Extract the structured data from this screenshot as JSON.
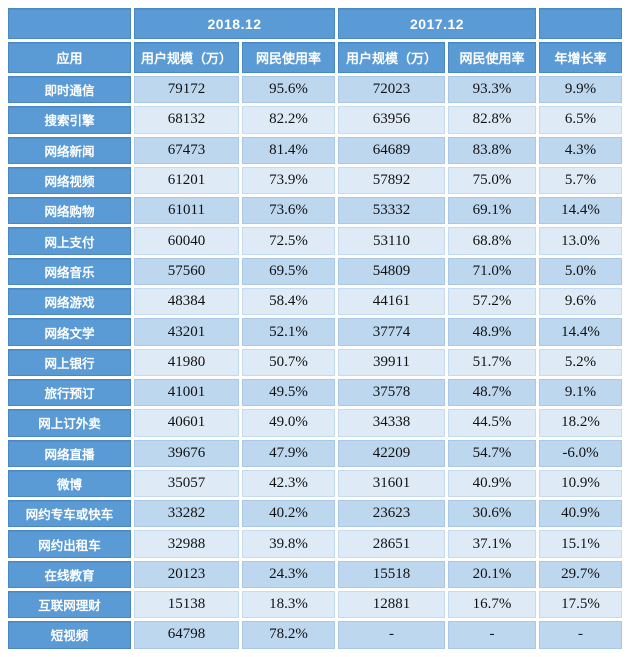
{
  "colors": {
    "header_blue": "#5B9BD5",
    "header_border": "#4B87C4",
    "header_text": "#FFFFFF",
    "row_dark": "#BDD7EE",
    "row_light": "#DEEBF7",
    "text": "#111111",
    "background": "#FFFFFF"
  },
  "chart_data": {
    "type": "table",
    "title": "",
    "group_headers": [
      "2018.12",
      "2017.12"
    ],
    "columns": [
      "应用",
      "用户规模（万）",
      "网民使用率",
      "用户规模（万）",
      "网民使用率",
      "年增长率"
    ],
    "rows": [
      {
        "label": "即时通信",
        "values": [
          "79172",
          "95.6%",
          "72023",
          "93.3%",
          "9.9%"
        ]
      },
      {
        "label": "搜索引擎",
        "values": [
          "68132",
          "82.2%",
          "63956",
          "82.8%",
          "6.5%"
        ]
      },
      {
        "label": "网络新闻",
        "values": [
          "67473",
          "81.4%",
          "64689",
          "83.8%",
          "4.3%"
        ]
      },
      {
        "label": "网络视频",
        "values": [
          "61201",
          "73.9%",
          "57892",
          "75.0%",
          "5.7%"
        ]
      },
      {
        "label": "网络购物",
        "values": [
          "61011",
          "73.6%",
          "53332",
          "69.1%",
          "14.4%"
        ]
      },
      {
        "label": "网上支付",
        "values": [
          "60040",
          "72.5%",
          "53110",
          "68.8%",
          "13.0%"
        ]
      },
      {
        "label": "网络音乐",
        "values": [
          "57560",
          "69.5%",
          "54809",
          "71.0%",
          "5.0%"
        ]
      },
      {
        "label": "网络游戏",
        "values": [
          "48384",
          "58.4%",
          "44161",
          "57.2%",
          "9.6%"
        ]
      },
      {
        "label": "网络文学",
        "values": [
          "43201",
          "52.1%",
          "37774",
          "48.9%",
          "14.4%"
        ]
      },
      {
        "label": "网上银行",
        "values": [
          "41980",
          "50.7%",
          "39911",
          "51.7%",
          "5.2%"
        ]
      },
      {
        "label": "旅行预订",
        "values": [
          "41001",
          "49.5%",
          "37578",
          "48.7%",
          "9.1%"
        ]
      },
      {
        "label": "网上订外卖",
        "values": [
          "40601",
          "49.0%",
          "34338",
          "44.5%",
          "18.2%"
        ]
      },
      {
        "label": "网络直播",
        "values": [
          "39676",
          "47.9%",
          "42209",
          "54.7%",
          "-6.0%"
        ]
      },
      {
        "label": "微博",
        "values": [
          "35057",
          "42.3%",
          "31601",
          "40.9%",
          "10.9%"
        ]
      },
      {
        "label": "网约专车或快车",
        "values": [
          "33282",
          "40.2%",
          "23623",
          "30.6%",
          "40.9%"
        ]
      },
      {
        "label": "网约出租车",
        "values": [
          "32988",
          "39.8%",
          "28651",
          "37.1%",
          "15.1%"
        ]
      },
      {
        "label": "在线教育",
        "values": [
          "20123",
          "24.3%",
          "15518",
          "20.1%",
          "29.7%"
        ]
      },
      {
        "label": "互联网理财",
        "values": [
          "15138",
          "18.3%",
          "12881",
          "16.7%",
          "17.5%"
        ]
      },
      {
        "label": "短视频",
        "values": [
          "64798",
          "78.2%",
          "-",
          "-",
          "-"
        ]
      }
    ]
  }
}
